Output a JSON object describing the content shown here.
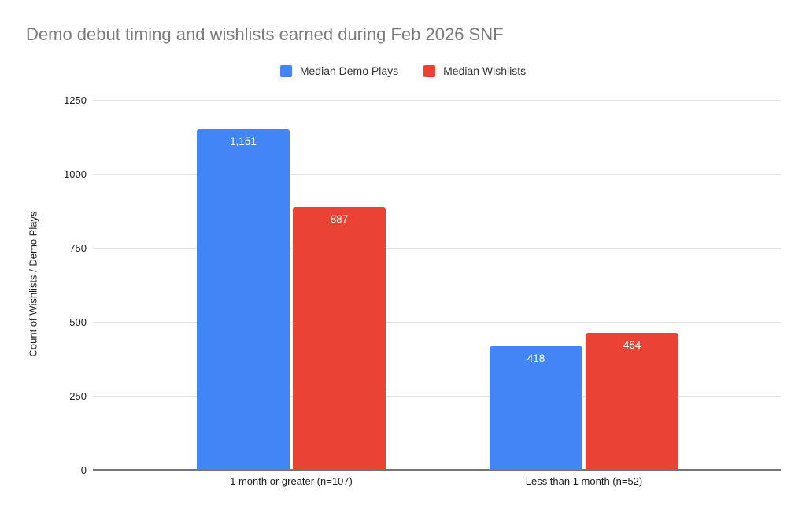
{
  "title": "Demo debut timing and wishlists earned during Feb 2026 SNF",
  "legend": {
    "items": [
      {
        "label": "Median Demo Plays",
        "color": "#4285F4"
      },
      {
        "label": "Median Wishlists",
        "color": "#EA4335"
      }
    ]
  },
  "y_axis": {
    "title": "Count of Wishlists / Demo Plays"
  },
  "chart_data": {
    "type": "bar",
    "title": "Demo debut timing and wishlists earned during Feb 2026 SNF",
    "categories": [
      "1 month or greater (n=107)",
      "Less than 1 month (n=52)"
    ],
    "series": [
      {
        "name": "Median Demo Plays",
        "color": "#4285F4",
        "values": [
          1151,
          418
        ],
        "value_labels": [
          "1,151",
          "418"
        ]
      },
      {
        "name": "Median Wishlists",
        "color": "#EA4335",
        "values": [
          887,
          464
        ],
        "value_labels": [
          "887",
          "464"
        ]
      }
    ],
    "xlabel": "",
    "ylabel": "Count of Wishlists / Demo Plays",
    "ylim": [
      0,
      1250
    ],
    "yticks": [
      0,
      250,
      500,
      750,
      1000,
      1250
    ],
    "grid": true,
    "legend_position": "top",
    "data_labels": "inside-end, white"
  },
  "colors": {
    "background": "#ffffff",
    "title_text": "#7b7b7b",
    "axis_line": "#757575",
    "gridline": "#e3e3e3",
    "axis_text": "#1a1a1a",
    "legend_text": "#333333",
    "bar_label_text": "#ffffff",
    "series_blue": "#4285F4",
    "series_red": "#EA4335"
  }
}
